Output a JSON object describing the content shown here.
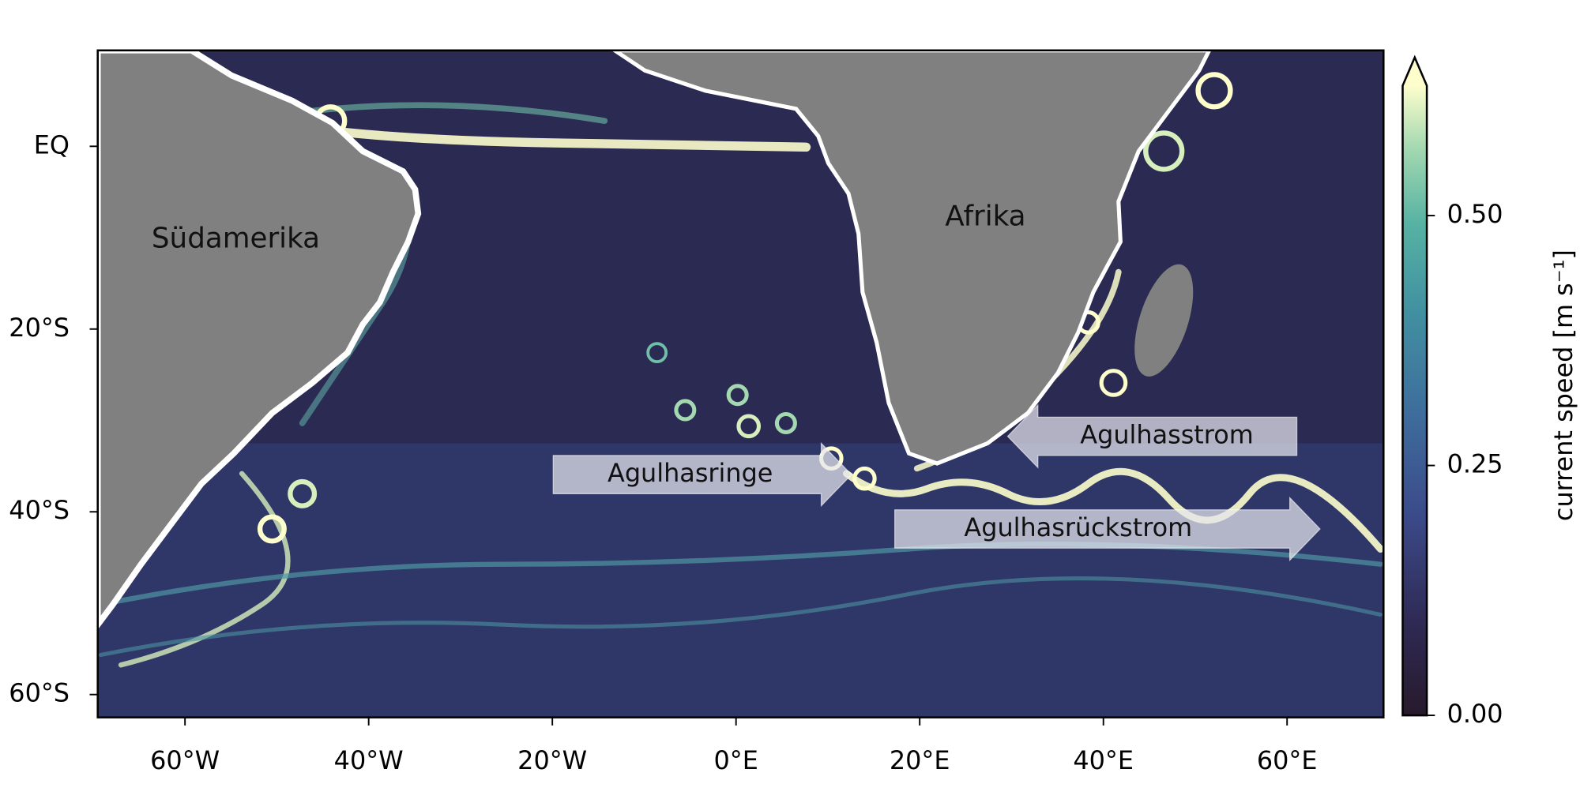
{
  "map": {
    "xlim": [
      -69.5,
      70.5
    ],
    "ylim": [
      -62.5,
      10.5
    ],
    "xticks": [
      {
        "value": -60,
        "label": "60°W"
      },
      {
        "value": -40,
        "label": "40°W"
      },
      {
        "value": -20,
        "label": "20°W"
      },
      {
        "value": 0,
        "label": "0°E"
      },
      {
        "value": 20,
        "label": "20°E"
      },
      {
        "value": 40,
        "label": "40°E"
      },
      {
        "value": 60,
        "label": "60°E"
      }
    ],
    "yticks": [
      {
        "value": 0,
        "label": "EQ"
      },
      {
        "value": -20,
        "label": "20°S"
      },
      {
        "value": -40,
        "label": "40°S"
      },
      {
        "value": -60,
        "label": "60°S"
      }
    ],
    "regions": [
      "Südamerika",
      "Afrika"
    ],
    "annotations": [
      "Agulhasringe",
      "Agulhasstrom",
      "Agulhasrückstrom"
    ]
  },
  "colorbar": {
    "label": "current speed [m s⁻¹]",
    "lim": [
      0,
      0.63
    ],
    "ticks": [
      {
        "value": 0,
        "label": "0.00"
      },
      0.25,
      {
        "value": 0.5,
        "label": "0.50"
      }
    ],
    "extend": "max"
  }
}
